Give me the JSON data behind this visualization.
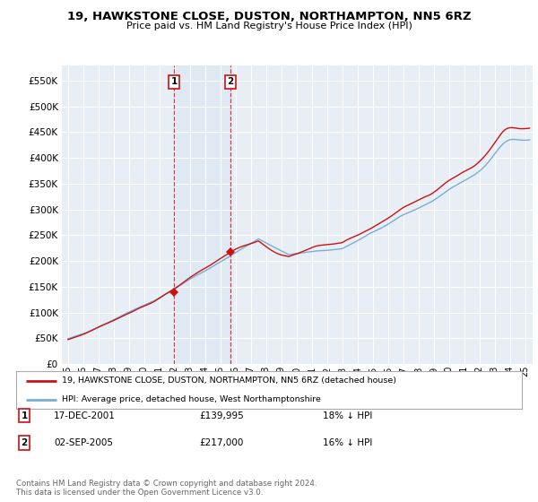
{
  "title": "19, HAWKSTONE CLOSE, DUSTON, NORTHAMPTON, NN5 6RZ",
  "subtitle": "Price paid vs. HM Land Registry's House Price Index (HPI)",
  "ytick_values": [
    0,
    50000,
    100000,
    150000,
    200000,
    250000,
    300000,
    350000,
    400000,
    450000,
    500000,
    550000
  ],
  "ylim": [
    0,
    580000
  ],
  "hpi_color": "#7aadd4",
  "price_color": "#cc1111",
  "background_color": "#ffffff",
  "plot_bg_color": "#e8eef5",
  "grid_color": "#ffffff",
  "t1_year": 2001.96,
  "t2_year": 2005.67,
  "t1_price": 139995,
  "t2_price": 217000,
  "legend_line1": "19, HAWKSTONE CLOSE, DUSTON, NORTHAMPTON, NN5 6RZ (detached house)",
  "legend_line2": "HPI: Average price, detached house, West Northamptonshire",
  "footer1": "Contains HM Land Registry data © Crown copyright and database right 2024.",
  "footer2": "This data is licensed under the Open Government Licence v3.0.",
  "table_rows": [
    {
      "num": "1",
      "date": "17-DEC-2001",
      "price": "£139,995",
      "pct": "18% ↓ HPI"
    },
    {
      "num": "2",
      "date": "02-SEP-2005",
      "price": "£217,000",
      "pct": "16% ↓ HPI"
    }
  ],
  "xstart": 1995.0,
  "xend": 2025.3
}
